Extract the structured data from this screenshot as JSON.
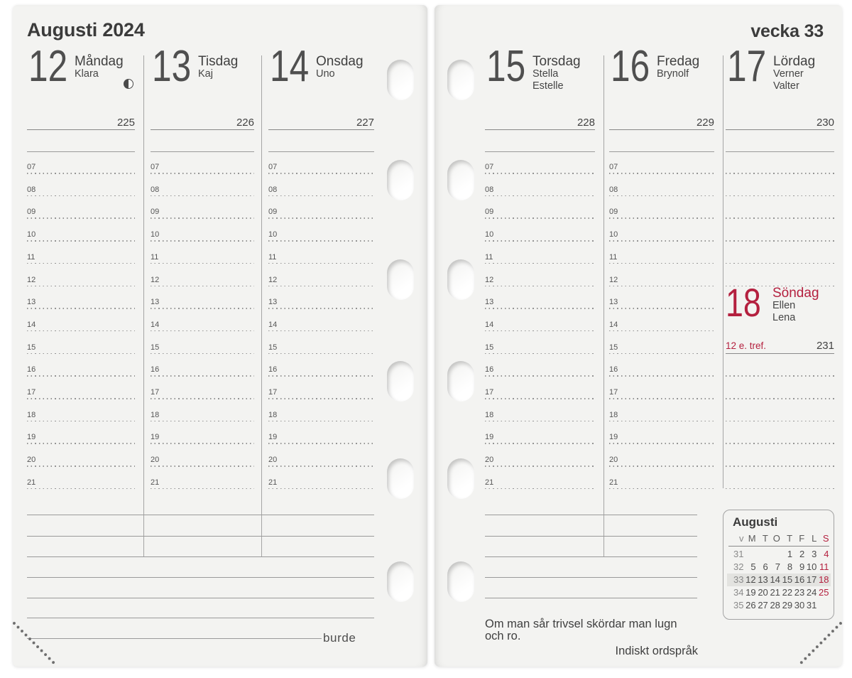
{
  "pages": {
    "left": {
      "title": "Augusti 2024",
      "brand": "burde",
      "days": [
        {
          "number": "12",
          "weekday": "Måndag",
          "namedays": [
            "Klara"
          ],
          "day_of_year": "225",
          "moon_icon": "last-quarter-moon"
        },
        {
          "number": "13",
          "weekday": "Tisdag",
          "namedays": [
            "Kaj"
          ],
          "day_of_year": "226"
        },
        {
          "number": "14",
          "weekday": "Onsdag",
          "namedays": [
            "Uno"
          ],
          "day_of_year": "227"
        }
      ]
    },
    "right": {
      "title": "vecka 33",
      "days": [
        {
          "number": "15",
          "weekday": "Torsdag",
          "namedays": [
            "Stella",
            "Estelle"
          ],
          "day_of_year": "228"
        },
        {
          "number": "16",
          "weekday": "Fredag",
          "namedays": [
            "Brynolf"
          ],
          "day_of_year": "229"
        },
        {
          "number": "17",
          "weekday": "Lördag",
          "namedays": [
            "Verner",
            "Valter"
          ],
          "day_of_year": "230"
        }
      ],
      "sunday": {
        "number": "18",
        "weekday": "Söndag",
        "namedays": [
          "Ellen",
          "Lena"
        ],
        "church_day": "12 e. tref.",
        "day_of_year": "231"
      },
      "quote": {
        "text": "Om man sår trivsel skördar man lugn och ro.",
        "attribution": "Indiskt ordspråk"
      },
      "mini_calendar": {
        "title": "Augusti",
        "week_header": "v",
        "day_headers": [
          "M",
          "T",
          "O",
          "T",
          "F",
          "L",
          "S"
        ],
        "weeks": [
          {
            "week": "31",
            "days": [
              "",
              "",
              "",
              "1",
              "2",
              "3",
              "4"
            ],
            "highlight": false
          },
          {
            "week": "32",
            "days": [
              "5",
              "6",
              "7",
              "8",
              "9",
              "10",
              "11"
            ],
            "highlight": false
          },
          {
            "week": "33",
            "days": [
              "12",
              "13",
              "14",
              "15",
              "16",
              "17",
              "18"
            ],
            "highlight": true
          },
          {
            "week": "34",
            "days": [
              "19",
              "20",
              "21",
              "22",
              "23",
              "24",
              "25"
            ],
            "highlight": false
          },
          {
            "week": "35",
            "days": [
              "26",
              "27",
              "28",
              "29",
              "30",
              "31",
              ""
            ],
            "highlight": false
          }
        ]
      }
    }
  },
  "hours": [
    "07",
    "08",
    "09",
    "10",
    "11",
    "12",
    "13",
    "14",
    "15",
    "16",
    "17",
    "18",
    "19",
    "20",
    "21"
  ],
  "colors": {
    "accent_red": "#b4203f",
    "page_background": "#f3f3f1",
    "ink": "#3f3f3f",
    "line_gray": "#9a9a9a"
  }
}
